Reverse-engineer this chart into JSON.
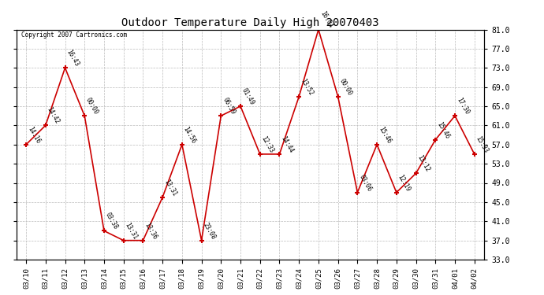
{
  "title": "Outdoor Temperature Daily High 20070403",
  "copyright": "Copyright 2007 Cartronics.com",
  "dates": [
    "03/10",
    "03/11",
    "03/12",
    "03/13",
    "03/14",
    "03/15",
    "03/16",
    "03/17",
    "03/18",
    "03/19",
    "03/20",
    "03/21",
    "03/22",
    "03/23",
    "03/24",
    "03/25",
    "03/26",
    "03/27",
    "03/28",
    "03/29",
    "03/30",
    "03/31",
    "04/01",
    "04/02"
  ],
  "values": [
    57,
    61,
    73,
    63,
    39,
    37,
    37,
    46,
    57,
    37,
    63,
    65,
    55,
    55,
    67,
    81,
    67,
    47,
    57,
    47,
    51,
    58,
    63,
    55
  ],
  "labels": [
    "14:16",
    "14:42",
    "16:43",
    "00:00",
    "03:38",
    "13:31",
    "13:36",
    "13:31",
    "14:56",
    "23:08",
    "06:59",
    "01:49",
    "12:33",
    "14:44",
    "13:52",
    "16:04",
    "00:00",
    "03:06",
    "15:46",
    "12:19",
    "13:12",
    "15:46",
    "17:30",
    "15:33"
  ],
  "line_color": "#cc0000",
  "marker_color": "#cc0000",
  "bg_color": "#ffffff",
  "grid_color": "#bbbbbb",
  "ylim_min": 33.0,
  "ylim_max": 81.0,
  "yticks": [
    33.0,
    37.0,
    41.0,
    45.0,
    49.0,
    53.0,
    57.0,
    61.0,
    65.0,
    69.0,
    73.0,
    77.0,
    81.0
  ]
}
